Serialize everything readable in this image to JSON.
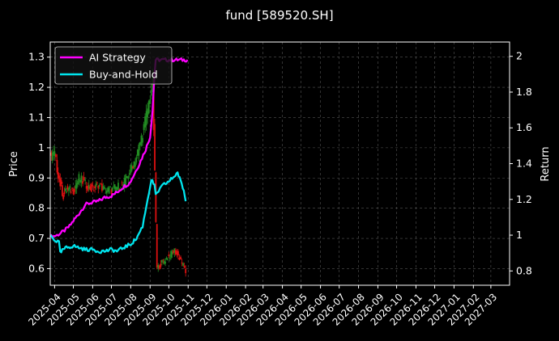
{
  "chart_data": {
    "type": "line",
    "title": "fund [589520.SH]",
    "ylabel_left": "Price",
    "ylabel_right": "Return",
    "ylim_left": [
      0.545,
      1.35
    ],
    "ylim_right": [
      0.72,
      2.08
    ],
    "xlim": [
      "2025-03-25",
      "2027-03-31"
    ],
    "grid": true,
    "legend_position": "top-left",
    "x_ticks": [
      "2025-04",
      "2025-05",
      "2025-06",
      "2025-07",
      "2025-08",
      "2025-09",
      "2025-10",
      "2025-11",
      "2025-12",
      "2026-01",
      "2026-02",
      "2026-03",
      "2026-04",
      "2026-05",
      "2026-06",
      "2026-07",
      "2026-08",
      "2026-09",
      "2026-10",
      "2026-11",
      "2026-12",
      "2027-01",
      "2027-02",
      "2027-03"
    ],
    "y_ticks_left": [
      0.6,
      0.7,
      0.8,
      0.9,
      1.0,
      1.1,
      1.2,
      1.3
    ],
    "y_ticks_right": [
      0.8,
      1.0,
      1.2,
      1.4,
      1.6,
      1.8,
      2.0
    ],
    "series": [
      {
        "name": "AI Strategy",
        "axis": "right",
        "color": "#ff00ff",
        "points": [
          [
            "2025-03-25",
            0.99
          ],
          [
            "2025-04-05",
            1.0
          ],
          [
            "2025-04-15",
            1.02
          ],
          [
            "2025-04-25",
            1.05
          ],
          [
            "2025-05-01",
            1.08
          ],
          [
            "2025-05-10",
            1.12
          ],
          [
            "2025-05-20",
            1.17
          ],
          [
            "2025-05-28",
            1.18
          ],
          [
            "2025-06-10",
            1.19
          ],
          [
            "2025-06-20",
            1.21
          ],
          [
            "2025-07-01",
            1.22
          ],
          [
            "2025-07-10",
            1.24
          ],
          [
            "2025-07-20",
            1.27
          ],
          [
            "2025-07-30",
            1.29
          ],
          [
            "2025-08-05",
            1.33
          ],
          [
            "2025-08-15",
            1.4
          ],
          [
            "2025-08-25",
            1.48
          ],
          [
            "2025-09-01",
            1.55
          ],
          [
            "2025-09-05",
            1.7
          ],
          [
            "2025-09-08",
            1.9
          ],
          [
            "2025-09-10",
            1.98
          ],
          [
            "2025-10-15",
            1.98
          ],
          [
            "2025-10-31",
            1.98
          ]
        ]
      },
      {
        "name": "Buy-and-Hold",
        "axis": "right",
        "color": "#00e5ee",
        "points": [
          [
            "2025-03-25",
            1.0
          ],
          [
            "2025-04-02",
            0.97
          ],
          [
            "2025-04-08",
            0.96
          ],
          [
            "2025-04-10",
            0.9
          ],
          [
            "2025-04-15",
            0.92
          ],
          [
            "2025-04-20",
            0.93
          ],
          [
            "2025-05-01",
            0.94
          ],
          [
            "2025-05-10",
            0.93
          ],
          [
            "2025-05-20",
            0.92
          ],
          [
            "2025-06-01",
            0.92
          ],
          [
            "2025-06-10",
            0.91
          ],
          [
            "2025-06-20",
            0.91
          ],
          [
            "2025-07-01",
            0.92
          ],
          [
            "2025-07-10",
            0.91
          ],
          [
            "2025-07-20",
            0.93
          ],
          [
            "2025-08-01",
            0.95
          ],
          [
            "2025-08-10",
            0.98
          ],
          [
            "2025-08-20",
            1.05
          ],
          [
            "2025-08-28",
            1.2
          ],
          [
            "2025-09-03",
            1.31
          ],
          [
            "2025-09-08",
            1.28
          ],
          [
            "2025-09-10",
            1.22
          ],
          [
            "2025-09-15",
            1.25
          ],
          [
            "2025-09-22",
            1.28
          ],
          [
            "2025-10-01",
            1.3
          ],
          [
            "2025-10-10",
            1.33
          ],
          [
            "2025-10-15",
            1.35
          ],
          [
            "2025-10-20",
            1.3
          ],
          [
            "2025-10-25",
            1.25
          ],
          [
            "2025-10-28",
            1.19
          ]
        ]
      },
      {
        "name": "",
        "axis": "left",
        "kind": "candlestick",
        "up_color": "#228b22",
        "down_color": "#dd1111",
        "points": [
          [
            "2025-03-25",
            0.97
          ],
          [
            "2025-04-01",
            0.98
          ],
          [
            "2025-04-05",
            0.93
          ],
          [
            "2025-04-10",
            0.88
          ],
          [
            "2025-04-15",
            0.84
          ],
          [
            "2025-04-20",
            0.86
          ],
          [
            "2025-05-01",
            0.86
          ],
          [
            "2025-05-10",
            0.9
          ],
          [
            "2025-05-20",
            0.88
          ],
          [
            "2025-06-01",
            0.86
          ],
          [
            "2025-06-10",
            0.88
          ],
          [
            "2025-06-20",
            0.86
          ],
          [
            "2025-07-01",
            0.86
          ],
          [
            "2025-07-10",
            0.87
          ],
          [
            "2025-07-20",
            0.88
          ],
          [
            "2025-08-01",
            0.93
          ],
          [
            "2025-08-10",
            0.97
          ],
          [
            "2025-08-20",
            1.05
          ],
          [
            "2025-08-30",
            1.15
          ],
          [
            "2025-09-05",
            1.22
          ],
          [
            "2025-09-12",
            0.6
          ],
          [
            "2025-09-20",
            0.62
          ],
          [
            "2025-10-01",
            0.64
          ],
          [
            "2025-10-10",
            0.66
          ],
          [
            "2025-10-20",
            0.63
          ],
          [
            "2025-10-28",
            0.59
          ]
        ]
      }
    ]
  }
}
